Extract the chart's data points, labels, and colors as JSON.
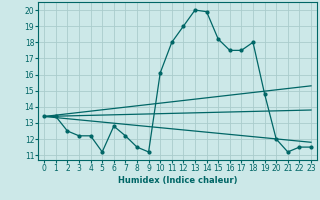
{
  "xlabel": "Humidex (Indice chaleur)",
  "bg_color": "#cce8e8",
  "grid_color": "#aacccc",
  "line_color": "#006666",
  "xlim": [
    -0.5,
    23.5
  ],
  "ylim": [
    10.7,
    20.5
  ],
  "yticks": [
    11,
    12,
    13,
    14,
    15,
    16,
    17,
    18,
    19,
    20
  ],
  "xticks": [
    0,
    1,
    2,
    3,
    4,
    5,
    6,
    7,
    8,
    9,
    10,
    11,
    12,
    13,
    14,
    15,
    16,
    17,
    18,
    19,
    20,
    21,
    22,
    23
  ],
  "main_curve_x": [
    0,
    1,
    2,
    3,
    4,
    5,
    6,
    7,
    8,
    9,
    10,
    11,
    12,
    13,
    14,
    15,
    16,
    17,
    18,
    19,
    20,
    21,
    22,
    23
  ],
  "main_curve_y": [
    13.4,
    13.4,
    12.5,
    12.2,
    12.2,
    11.2,
    12.8,
    12.2,
    11.5,
    11.2,
    16.1,
    18.0,
    19.0,
    20.0,
    19.9,
    18.2,
    17.5,
    17.5,
    18.0,
    14.8,
    12.0,
    11.2,
    11.5,
    11.5
  ],
  "upper_line_x": [
    0,
    23
  ],
  "upper_line_y": [
    13.4,
    15.3
  ],
  "lower_line_x": [
    0,
    23
  ],
  "lower_line_y": [
    13.4,
    11.8
  ],
  "mid_line_x": [
    0,
    23
  ],
  "mid_line_y": [
    13.4,
    13.8
  ]
}
